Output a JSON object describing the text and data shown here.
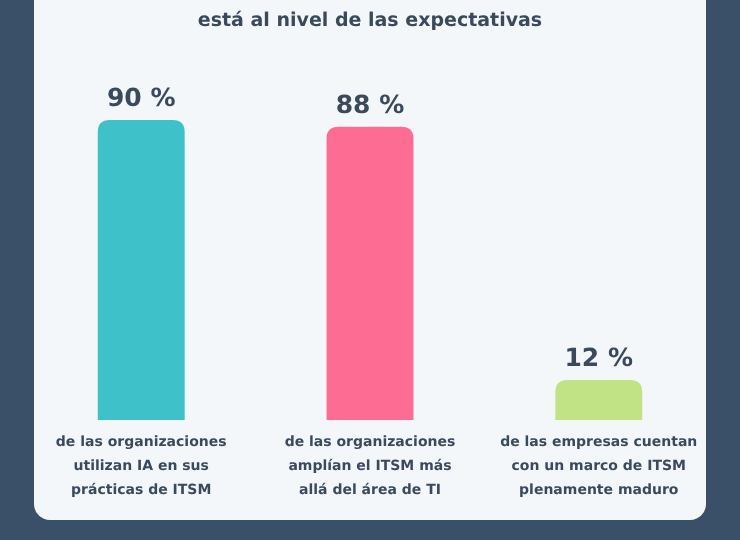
{
  "chart_data": {
    "type": "bar",
    "title": "está al nivel de las expectativas",
    "categories": [
      "de las organizaciones utilizan IA en sus prácticas de ITSM",
      "de las organizaciones amplían el ITSM más allá del área de TI",
      "de las empresas cuentan con un marco de ITSM plenamente maduro"
    ],
    "values": [
      90,
      88,
      12
    ],
    "colors": [
      "#3fc1c9",
      "#fc6c93",
      "#c2e385"
    ],
    "value_labels": [
      "90 %",
      "88 %",
      "12 %"
    ]
  }
}
